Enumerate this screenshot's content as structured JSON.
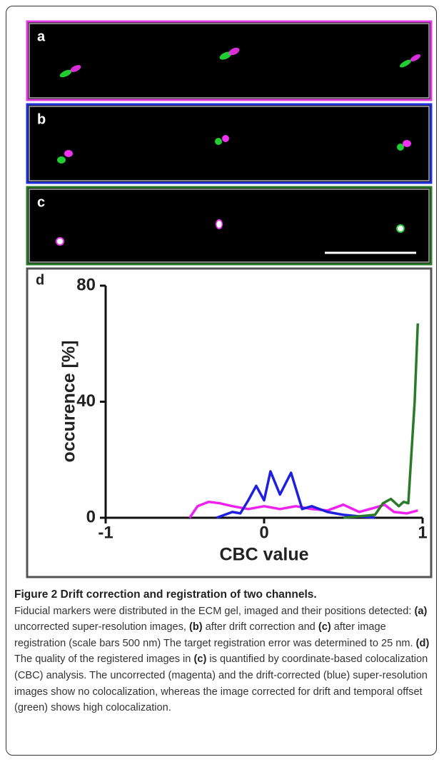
{
  "panels": [
    {
      "label": "a"
    },
    {
      "label": "b"
    },
    {
      "label": "c"
    }
  ],
  "chart_data": {
    "type": "line",
    "label": "d",
    "ylabel": "occurence [%]",
    "xlabel": "CBC value",
    "xlim": [
      -1,
      1
    ],
    "ylim": [
      0,
      80
    ],
    "xticks": [
      -1,
      0,
      1
    ],
    "yticks": [
      0,
      40,
      80
    ],
    "series": [
      {
        "color": "#ee22ee",
        "x": [
          -0.47,
          -0.42,
          -0.35,
          -0.28,
          -0.2,
          -0.1,
          0,
          0.1,
          0.2,
          0.3,
          0.4,
          0.5,
          0.6,
          0.7,
          0.76,
          0.82,
          0.9,
          0.97
        ],
        "values": [
          0,
          4,
          5.5,
          5,
          4,
          3,
          4,
          3,
          4,
          3,
          2.5,
          4.5,
          2,
          3.5,
          4.5,
          2,
          1.5,
          2.5
        ]
      },
      {
        "color": "#1f1fe0",
        "x": [
          -0.3,
          -0.2,
          -0.15,
          -0.1,
          -0.05,
          0,
          0.04,
          0.1,
          0.17,
          0.24,
          0.3,
          0.4,
          0.5,
          0.6,
          0.7
        ],
        "values": [
          0,
          2,
          1.5,
          6,
          11,
          6,
          16,
          8,
          15.5,
          3,
          4,
          2,
          1,
          0.5,
          0
        ]
      },
      {
        "color": "#2a7a2a",
        "x": [
          0.5,
          0.7,
          0.75,
          0.8,
          0.85,
          0.88,
          0.91,
          0.95,
          0.97
        ],
        "values": [
          0,
          1,
          5,
          6.5,
          4,
          5.5,
          5,
          40,
          67
        ]
      }
    ]
  },
  "caption": {
    "title": "Figure 2 Drift correction and registration of two channels.",
    "body": [
      {
        "text": "Fiducial markers were distributed in the ECM gel, imaged and their positions detected: ",
        "bold": false
      },
      {
        "text": "(a)",
        "bold": true
      },
      {
        "text": " uncorrected super-resolution images, ",
        "bold": false
      },
      {
        "text": "(b)",
        "bold": true
      },
      {
        "text": " after drift correction and ",
        "bold": false
      },
      {
        "text": "(c)",
        "bold": true
      },
      {
        "text": " after image registration (scale bars 500 nm) The target registration error was determined to 25 nm. ",
        "bold": false
      },
      {
        "text": "(d)",
        "bold": true
      },
      {
        "text": " The quality of the registered images in ",
        "bold": false
      },
      {
        "text": "(c)",
        "bold": true
      },
      {
        "text": " is quantified by coordinate-based colocalization (CBC) analysis. The uncorrected (magenta) and the drift-corrected (blue) super-resolution images show no colocalization, whereas the image corrected for drift and temporal offset (green) shows high colocalization.",
        "bold": false
      }
    ]
  }
}
